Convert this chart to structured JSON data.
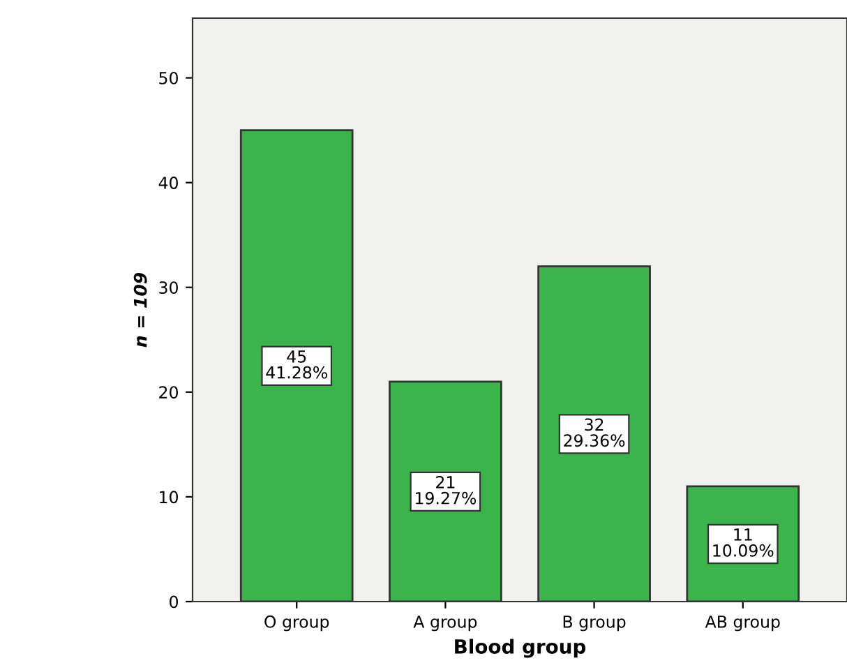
{
  "chart_data": {
    "type": "bar",
    "xlabel": "Blood group",
    "ylabel": "n = 109",
    "categories": [
      "O group",
      "A group",
      "B group",
      "AB group"
    ],
    "values": [
      45,
      21,
      32,
      11
    ],
    "value_labels": [
      "45\n41.28%",
      "21\n19.27%",
      "32\n29.36%",
      "11\n10.09%"
    ],
    "color": "#3cb44c",
    "ylim": [
      0,
      55.7
    ],
    "yticks": [
      0,
      10,
      20,
      30,
      40,
      50
    ],
    "grid": false,
    "legend": false
  }
}
